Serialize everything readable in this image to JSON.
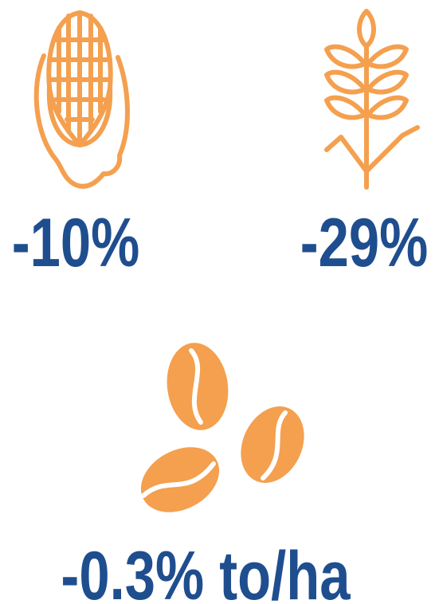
{
  "items": [
    {
      "value": "-10%"
    },
    {
      "value": "-29%"
    },
    {
      "value": "-0.3% to/ha"
    }
  ]
}
